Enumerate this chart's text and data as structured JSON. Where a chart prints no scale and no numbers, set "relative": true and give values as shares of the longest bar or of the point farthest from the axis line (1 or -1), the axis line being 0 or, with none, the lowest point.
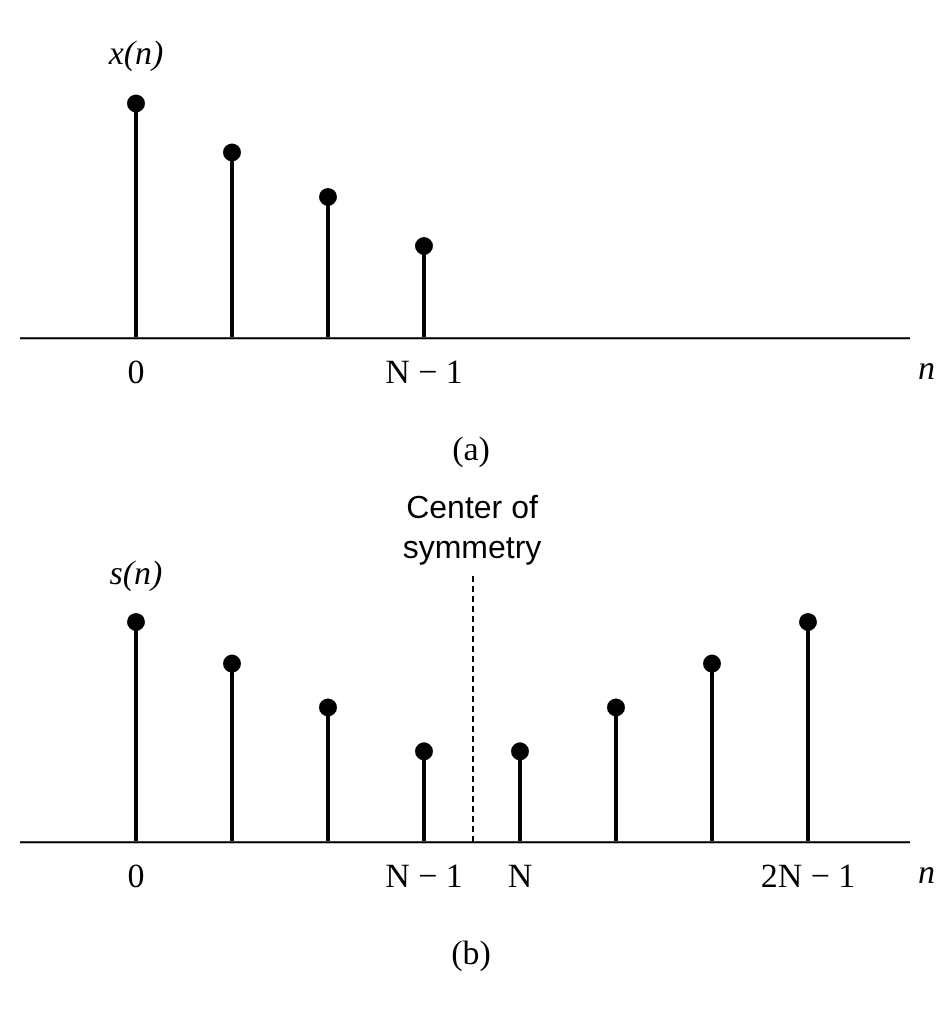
{
  "chart_data": [
    {
      "type": "lollipop",
      "ylabel": "x(n)",
      "xlabel": "n",
      "relative": true,
      "color": "#000000",
      "marker": "circle",
      "grid": false,
      "categories": [
        "0",
        null,
        null,
        "N − 1",
        null,
        null,
        null,
        null
      ],
      "values": [
        1,
        0.79,
        0.6,
        0.39,
        null,
        null,
        null,
        null
      ],
      "annotations": [
        "(a)"
      ]
    },
    {
      "type": "lollipop",
      "ylabel": "s(n)",
      "xlabel": "n",
      "relative": true,
      "color": "#000000",
      "marker": "circle",
      "grid": false,
      "categories": [
        "0",
        null,
        null,
        "N − 1",
        "N",
        null,
        null,
        "2N − 1"
      ],
      "values": [
        1,
        0.81,
        0.61,
        0.41,
        0.41,
        0.61,
        0.81,
        1
      ],
      "annotations": [
        "Center of symmetry",
        "(b)"
      ]
    }
  ]
}
